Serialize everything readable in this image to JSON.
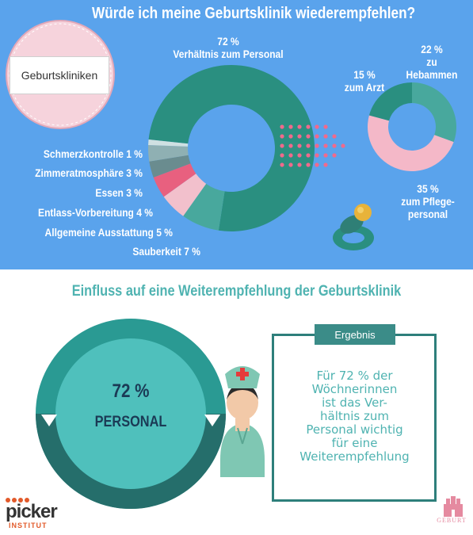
{
  "header": {
    "title": "Würde ich meine Geburtsklinik wiederempfehlen?",
    "badge_label": "Geburtskliniken"
  },
  "chart_data": [
    {
      "type": "pie",
      "variant": "donut",
      "categories": [
        "Verhältnis zum Personal",
        "Sauberkeit",
        "Allgemeine Ausstattung",
        "Entlass-Vorbereitung",
        "Essen",
        "Zimmeratmosphäre",
        "Schmerzkontrolle"
      ],
      "values": [
        72,
        7,
        5,
        4,
        3,
        3,
        1
      ],
      "labels": [
        {
          "pct": "72 %",
          "name": "Verhältnis zum Personal"
        },
        {
          "text": "Sauberkeit 7 %"
        },
        {
          "text": "Allgemeine Ausstattung 5 %"
        },
        {
          "text": "Entlass-Vorbereitung 4 %"
        },
        {
          "text": "Essen 3 %"
        },
        {
          "text": "Zimmeratmosphäre 3 %"
        },
        {
          "text": "Schmerzkontrolle 1 %"
        }
      ],
      "colors": [
        "#2a8f80",
        "#48a89d",
        "#f2c0cc",
        "#e8607f",
        "#6a8c8f",
        "#8fb0b3",
        "#cfe0e2"
      ]
    },
    {
      "type": "pie",
      "variant": "donut",
      "categories": [
        "zu Hebammen",
        "zum Pflegepersonal",
        "zum Arzt"
      ],
      "values": [
        22,
        35,
        15
      ],
      "labels": [
        {
          "pct": "22 %",
          "line1": "zu",
          "line2": "Hebammen"
        },
        {
          "pct": "35 %",
          "line1": "zum Pflege-",
          "line2": "personal"
        },
        {
          "pct": "15 %",
          "line1": "zum Arzt"
        }
      ],
      "colors": [
        "#48a89d",
        "#f4b8c8",
        "#2a8f80"
      ]
    }
  ],
  "section2": {
    "title": "Einfluss auf eine Weiterempfehlung der Geburtsklinik",
    "big_pct": "72 %",
    "big_label": "PERSONAL",
    "result_tab": "Ergebnis",
    "result_text": "Für 72 % der\nWöchnerinnen\nist das Ver-\nhältnis zum\nPersonal wichtig\nfür eine\nWeiterempfehlung"
  },
  "logos": {
    "picker_word": "picker",
    "picker_sub": "INSTITUT",
    "geburt_word": "GEBURT"
  }
}
